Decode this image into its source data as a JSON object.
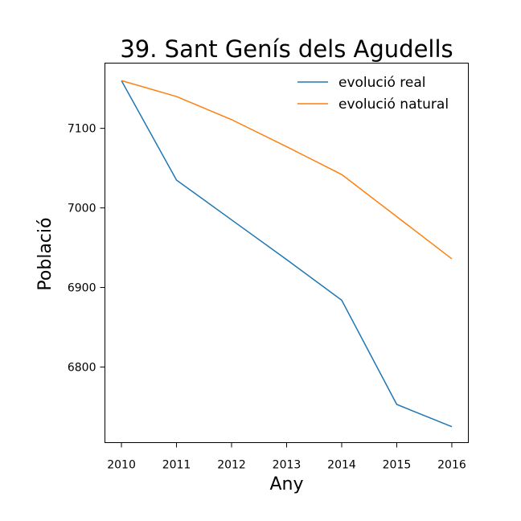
{
  "chart_data": {
    "type": "line",
    "title": "39. Sant Genís dels Agudells",
    "xlabel": "Any",
    "ylabel": "Població",
    "x": [
      2010,
      2011,
      2012,
      2013,
      2014,
      2015,
      2016
    ],
    "xticks": [
      "2010",
      "2011",
      "2012",
      "2013",
      "2014",
      "2015",
      "2016"
    ],
    "yticks": [
      6800,
      6900,
      7000,
      7100
    ],
    "ytick_labels": [
      "6800",
      "6900",
      "7000",
      "7100"
    ],
    "ylim": [
      6705,
      7182
    ],
    "xlim": [
      2009.7,
      2016.3
    ],
    "grid": false,
    "legend_position": "top-right",
    "series": [
      {
        "name": "evolució real",
        "color": "#1f77b4",
        "values": [
          7160,
          7035,
          6985,
          6935,
          6884,
          6753,
          6725
        ]
      },
      {
        "name": "evolució natural",
        "color": "#ff7f0e",
        "values": [
          7160,
          7140,
          7111,
          7077,
          7042,
          6989,
          6936
        ]
      }
    ]
  }
}
